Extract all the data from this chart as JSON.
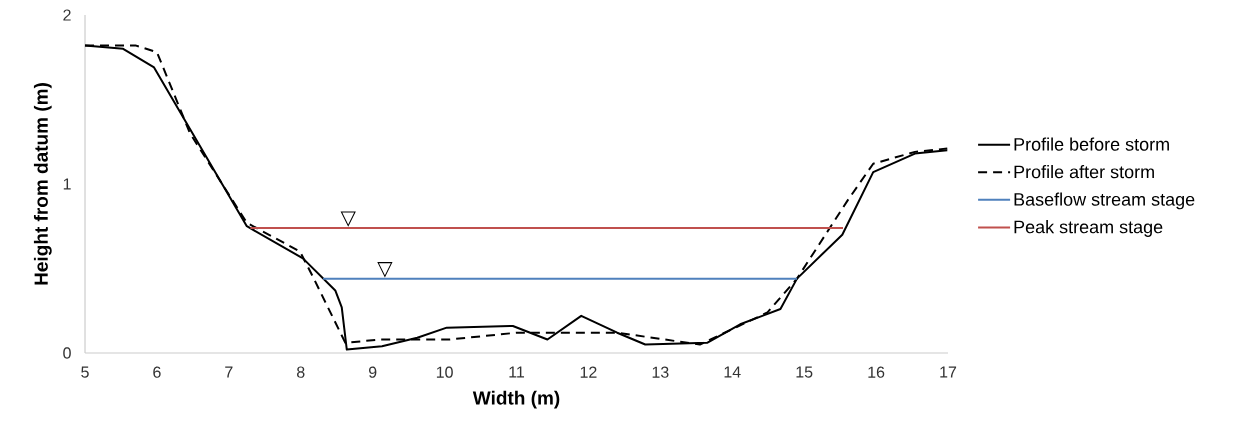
{
  "chart_data": {
    "type": "line",
    "xlabel": "Width (m)",
    "ylabel": "Height from datum (m)",
    "xlim": [
      5,
      17
    ],
    "xticks": [
      5,
      6,
      7,
      8,
      9,
      10,
      11,
      12,
      13,
      14,
      15,
      16,
      17
    ],
    "ylim": [
      0,
      2
    ],
    "yticks": [
      0,
      1,
      2
    ],
    "legend": "right",
    "grid": false,
    "series": [
      {
        "name": "Profile before storm",
        "color": "#000000",
        "line_style": "solid",
        "x": [
          5.0,
          5.53,
          5.96,
          7.25,
          8.03,
          8.48,
          8.57,
          8.64,
          9.13,
          9.62,
          10.03,
          10.95,
          11.43,
          11.9,
          12.4,
          12.79,
          13.65,
          14.11,
          14.67,
          14.9,
          15.53,
          15.96,
          16.54,
          16.99
        ],
        "values": [
          1.82,
          1.8,
          1.69,
          0.75,
          0.56,
          0.37,
          0.27,
          0.02,
          0.04,
          0.09,
          0.15,
          0.16,
          0.08,
          0.22,
          0.12,
          0.05,
          0.06,
          0.17,
          0.26,
          0.44,
          0.7,
          1.07,
          1.18,
          1.2
        ]
      },
      {
        "name": "Profile after storm",
        "color": "#000000",
        "line_style": "dashed",
        "x": [
          5.0,
          5.7,
          6.0,
          6.46,
          7.25,
          7.99,
          8.17,
          8.62,
          9.1,
          10.07,
          11.0,
          12.4,
          13.55,
          14.49,
          14.9,
          15.6,
          15.96,
          16.54,
          16.99
        ],
        "values": [
          1.82,
          1.82,
          1.78,
          1.3,
          0.77,
          0.6,
          0.45,
          0.06,
          0.08,
          0.08,
          0.12,
          0.12,
          0.05,
          0.24,
          0.44,
          0.9,
          1.12,
          1.19,
          1.21
        ]
      },
      {
        "name": "Baseflow stream stage",
        "color": "#4f81bd",
        "line_style": "solid",
        "x": [
          8.31,
          14.9
        ],
        "values": [
          0.44,
          0.44
        ]
      },
      {
        "name": "Peak stream stage",
        "color": "#c0504d",
        "line_style": "solid",
        "x": [
          7.3,
          15.54
        ],
        "values": [
          0.74,
          0.74
        ]
      }
    ],
    "annotations": [
      {
        "text": "▽",
        "x": 8.66,
        "y": 0.74
      },
      {
        "text": "▽",
        "x": 9.17,
        "y": 0.44
      }
    ]
  }
}
